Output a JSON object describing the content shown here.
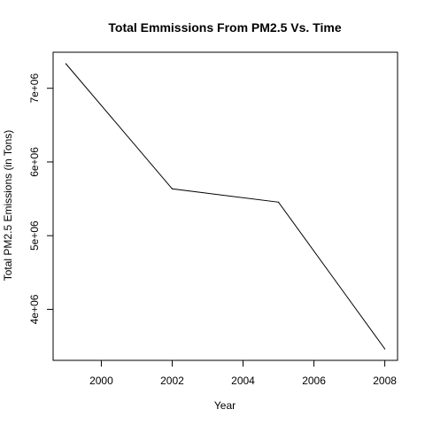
{
  "chart_data": {
    "type": "line",
    "title": "Total Emmissions From PM2.5 Vs. Time",
    "xlabel": "Year",
    "ylabel": "Total PM2.5 Emissions (in Tons)",
    "x": [
      1999,
      2002,
      2005,
      2008
    ],
    "series": [
      {
        "values": [
          7332967,
          5635780,
          5454703,
          3464206
        ]
      }
    ],
    "xlim": [
      1998.64,
      2008.36
    ],
    "ylim": [
      3308000,
      7489000
    ],
    "xticks": [
      2000,
      2002,
      2004,
      2006,
      2008
    ],
    "xtick_labels": [
      "2000",
      "2002",
      "2004",
      "2006",
      "2008"
    ],
    "yticks": [
      4000000,
      5000000,
      6000000,
      7000000
    ],
    "ytick_labels": [
      "4e+06",
      "5e+06",
      "6e+06",
      "7e+06"
    ],
    "line_color": "#000000",
    "grid": false,
    "legend": "none"
  }
}
